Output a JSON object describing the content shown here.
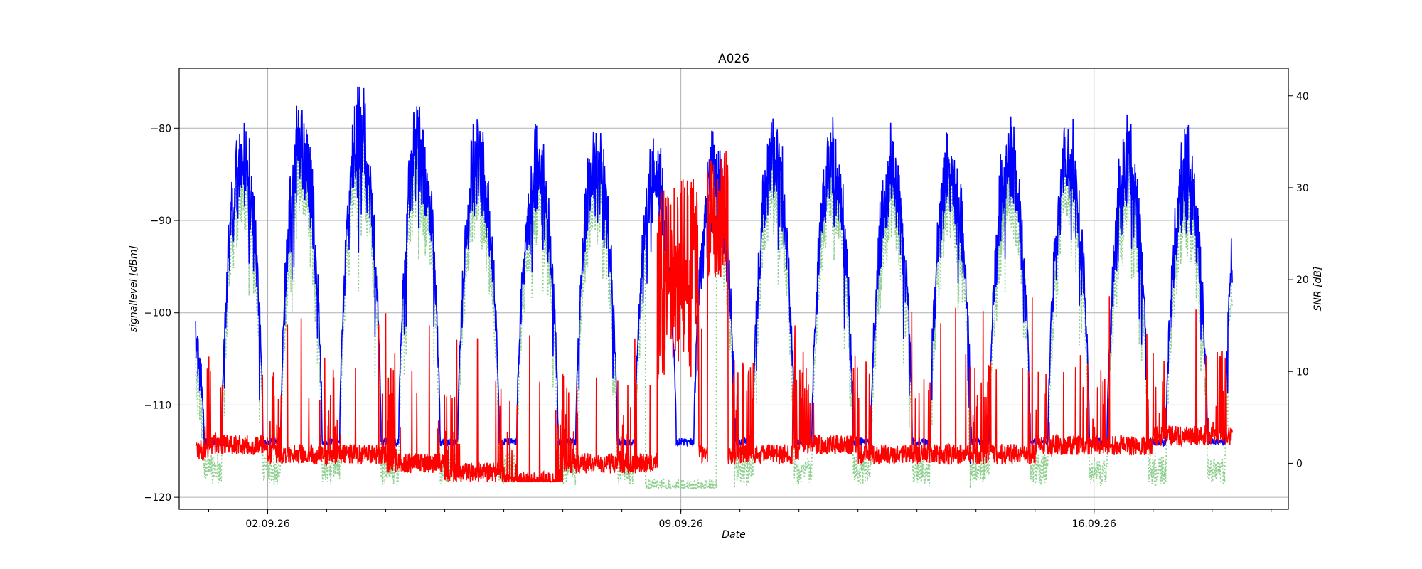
{
  "chart_data": {
    "type": "line",
    "title": "A026",
    "xlabel": "Date",
    "ylabel_left": "signallevel [dBm]",
    "ylabel_right": "SNR [dB]",
    "x_range": [
      "2026-08-31T12:00",
      "2026-09-19T07:00"
    ],
    "x_ticks": [
      "02.09.26",
      "09.09.26",
      "16.09.26"
    ],
    "ylim_left": [
      -121.3,
      -73.5
    ],
    "ylim_right": [
      -5,
      43
    ],
    "y_ticks_left": [
      -80,
      -90,
      -100,
      -110,
      -120
    ],
    "y_ticks_right": [
      40,
      30,
      20,
      10,
      0
    ],
    "grid": true,
    "legend": "none",
    "colors": {
      "signal": "#0000ff",
      "snr": "#ff0000",
      "quality": "#8fcf8f"
    },
    "series": [
      {
        "axis": "left",
        "style": "solid",
        "color": "#0000ff",
        "description": "signal level, daily cycle; low around -113 to -116, daytime peaks near -80",
        "daily_low": -114,
        "daily_peaks": [
          -95,
          -80,
          -78,
          -77,
          -78,
          -80,
          -81,
          -80,
          -82,
          -82,
          -79,
          -80,
          -81,
          -81,
          -80,
          -80,
          -81,
          -82,
          -80,
          -82
        ]
      },
      {
        "axis": "right",
        "style": "solid",
        "color": "#ff0000",
        "description": "SNR; mostly 0-3 dB with spikes, large burst around 08.09.26",
        "baseline": [
          1.5,
          2,
          1,
          1,
          0,
          -1,
          -2,
          0,
          0,
          1,
          1,
          2,
          1,
          1,
          1,
          2,
          2,
          3,
          3,
          2
        ]
      },
      {
        "axis": "left",
        "style": "dotted",
        "color": "#8fcf8f",
        "description": "secondary signal trace closely following the blue series, lower near 08.09.26"
      }
    ]
  }
}
